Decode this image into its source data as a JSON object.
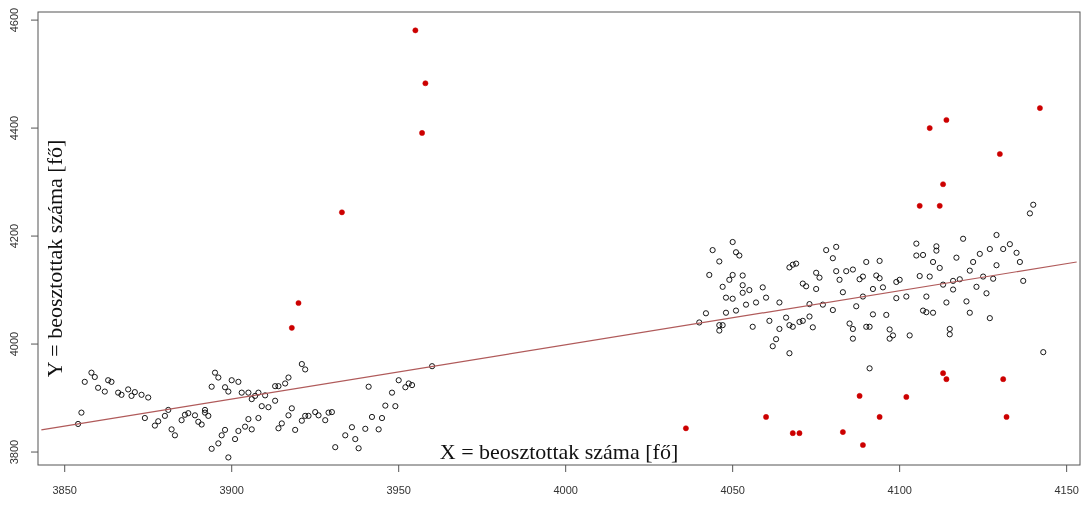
{
  "chart_data": {
    "type": "scatter",
    "xlabel": "X = beosztottak száma [fő]",
    "ylabel": "Y = beosztottak száma [fő]",
    "xlim": [
      3842,
      4154
    ],
    "ylim": [
      3776,
      4615
    ],
    "xticks": [
      3850,
      3900,
      3950,
      4000,
      4050,
      4100,
      4150
    ],
    "yticks": [
      3800,
      4000,
      4200,
      4400,
      4600
    ],
    "grid": false,
    "series": [
      {
        "color": "#000000",
        "marker": "circle",
        "x": [
          3854,
          3855,
          3856,
          3858,
          3859,
          3860,
          3862,
          3863,
          3864,
          3866,
          3867,
          3869,
          3870,
          3871,
          3873,
          3875,
          3874,
          3877,
          3878,
          3880,
          3881,
          3882,
          3883,
          3885,
          3886,
          3887,
          3889,
          3890,
          3891,
          3892,
          3892,
          3893,
          3894,
          3895,
          3896,
          3894,
          3896,
          3897,
          3898,
          3899,
          3898,
          3899,
          3900,
          3902,
          3901,
          3902,
          3904,
          3905,
          3906,
          3903,
          3905,
          3906,
          3907,
          3908,
          3908,
          3909,
          3910,
          3911,
          3913,
          3913,
          3914,
          3916,
          3917,
          3914,
          3915,
          3917,
          3918,
          3919,
          3921,
          3922,
          3923,
          3925,
          3926,
          3928,
          3929,
          3930,
          3921,
          3922,
          3931,
          3934,
          3936,
          3937,
          3938,
          3940,
          3941,
          3942,
          3944,
          3945,
          3946,
          3948,
          3949,
          3950,
          3952,
          3953,
          3954,
          3960,
          4040,
          4042,
          4043,
          4044,
          4046,
          4046,
          4046,
          4047,
          4047,
          4048,
          4049,
          4050,
          4050,
          4048,
          4050,
          4051,
          4051,
          4052,
          4053,
          4053,
          4053,
          4054,
          4055,
          4056,
          4057,
          4059,
          4060,
          4061,
          4062,
          4063,
          4064,
          4064,
          4066,
          4067,
          4067,
          4068,
          4069,
          4067,
          4068,
          4070,
          4071,
          4071,
          4072,
          4073,
          4073,
          4074,
          4075,
          4075,
          4076,
          4077,
          4078,
          4080,
          4080,
          4081,
          4081,
          4082,
          4083,
          4084,
          4085,
          4086,
          4086,
          4086,
          4087,
          4088,
          4089,
          4089,
          4090,
          4090,
          4091,
          4091,
          4092,
          4092,
          4093,
          4094,
          4094,
          4095,
          4096,
          4097,
          4097,
          4098,
          4099,
          4099,
          4100,
          4102,
          4103,
          4105,
          4105,
          4106,
          4107,
          4107,
          4108,
          4108,
          4109,
          4110,
          4110,
          4111,
          4111,
          4112,
          4113,
          4114,
          4115,
          4115,
          4116,
          4116,
          4117,
          4118,
          4119,
          4120,
          4121,
          4121,
          4122,
          4123,
          4124,
          4125,
          4126,
          4127,
          4127,
          4128,
          4129,
          4129,
          4131,
          4133,
          4135,
          4136,
          4137,
          4139,
          4140,
          4143
        ],
        "values": [
          3852,
          3873,
          3930,
          3947,
          3939,
          3919,
          3912,
          3933,
          3930,
          3910,
          3906,
          3916,
          3904,
          3911,
          3906,
          3901,
          3863,
          3849,
          3857,
          3867,
          3878,
          3842,
          3831,
          3859,
          3869,
          3872,
          3868,
          3856,
          3851,
          3878,
          3873,
          3867,
          3921,
          3947,
          3938,
          3806,
          3816,
          3831,
          3841,
          3790,
          3920,
          3912,
          3933,
          3930,
          3824,
          3839,
          3847,
          3861,
          3842,
          3910,
          3910,
          3898,
          3904,
          3910,
          3863,
          3885,
          3905,
          3883,
          3895,
          3922,
          3922,
          3927,
          3938,
          3844,
          3853,
          3868,
          3881,
          3841,
          3858,
          3867,
          3867,
          3874,
          3868,
          3859,
          3873,
          3874,
          3963,
          3953,
          3809,
          3831,
          3846,
          3824,
          3807,
          3843,
          3921,
          3865,
          3842,
          3863,
          3886,
          3910,
          3885,
          3933,
          3920,
          3927,
          3924,
          3959,
          4040,
          4057,
          4128,
          4174,
          4153,
          4035,
          4025,
          4035,
          4106,
          4058,
          4119,
          4128,
          4189,
          4086,
          4084,
          4062,
          4170,
          4164,
          4095,
          4127,
          4109,
          4073,
          4100,
          4032,
          4077,
          4105,
          4086,
          4043,
          3996,
          4009,
          4028,
          4077,
          4049,
          4142,
          3983,
          4147,
          4149,
          4035,
          4032,
          4041,
          4112,
          4043,
          4107,
          4074,
          4051,
          4031,
          4102,
          4132,
          4123,
          4073,
          4174,
          4159,
          4063,
          4180,
          4135,
          4119,
          4096,
          4135,
          4038,
          4028,
          4010,
          4138,
          4070,
          4120,
          4125,
          4088,
          4032,
          4152,
          4032,
          3955,
          4102,
          4055,
          4127,
          4154,
          4122,
          4105,
          4054,
          4027,
          4010,
          4016,
          4115,
          4085,
          4119,
          4088,
          4016,
          4186,
          4164,
          4126,
          4165,
          4062,
          4088,
          4059,
          4125,
          4058,
          4152,
          4173,
          4181,
          4141,
          4110,
          4077,
          4018,
          4028,
          4117,
          4101,
          4160,
          4120,
          4195,
          4079,
          4136,
          4058,
          4152,
          4106,
          4167,
          4125,
          4094,
          4048,
          4176,
          4121,
          4202,
          4146,
          4176,
          4185,
          4169,
          4152,
          4117,
          4242,
          4258,
          3985
        ]
      },
      {
        "color": "#cc0000",
        "marker": "circle",
        "x": [
          3955,
          3958,
          3957,
          3933,
          3920,
          3918,
          4109,
          4114,
          4113,
          4106,
          4112,
          4130,
          4142,
          4113,
          4114,
          4131,
          4132,
          4102,
          4094,
          4088,
          4083,
          4089,
          4060,
          4068,
          4070,
          4036
        ],
        "values": [
          4581,
          4483,
          4391,
          4244,
          4076,
          4030,
          4400,
          4415,
          4296,
          4256,
          4256,
          4352,
          4437,
          3946,
          3935,
          3935,
          3865,
          3902,
          3865,
          3904,
          3837,
          3813,
          3865,
          3835,
          3835,
          3844
        ]
      },
      {
        "type": "line",
        "color": "#b05a5a",
        "x": [
          3843,
          4153
        ],
        "values": [
          3841,
          4152
        ]
      }
    ]
  }
}
